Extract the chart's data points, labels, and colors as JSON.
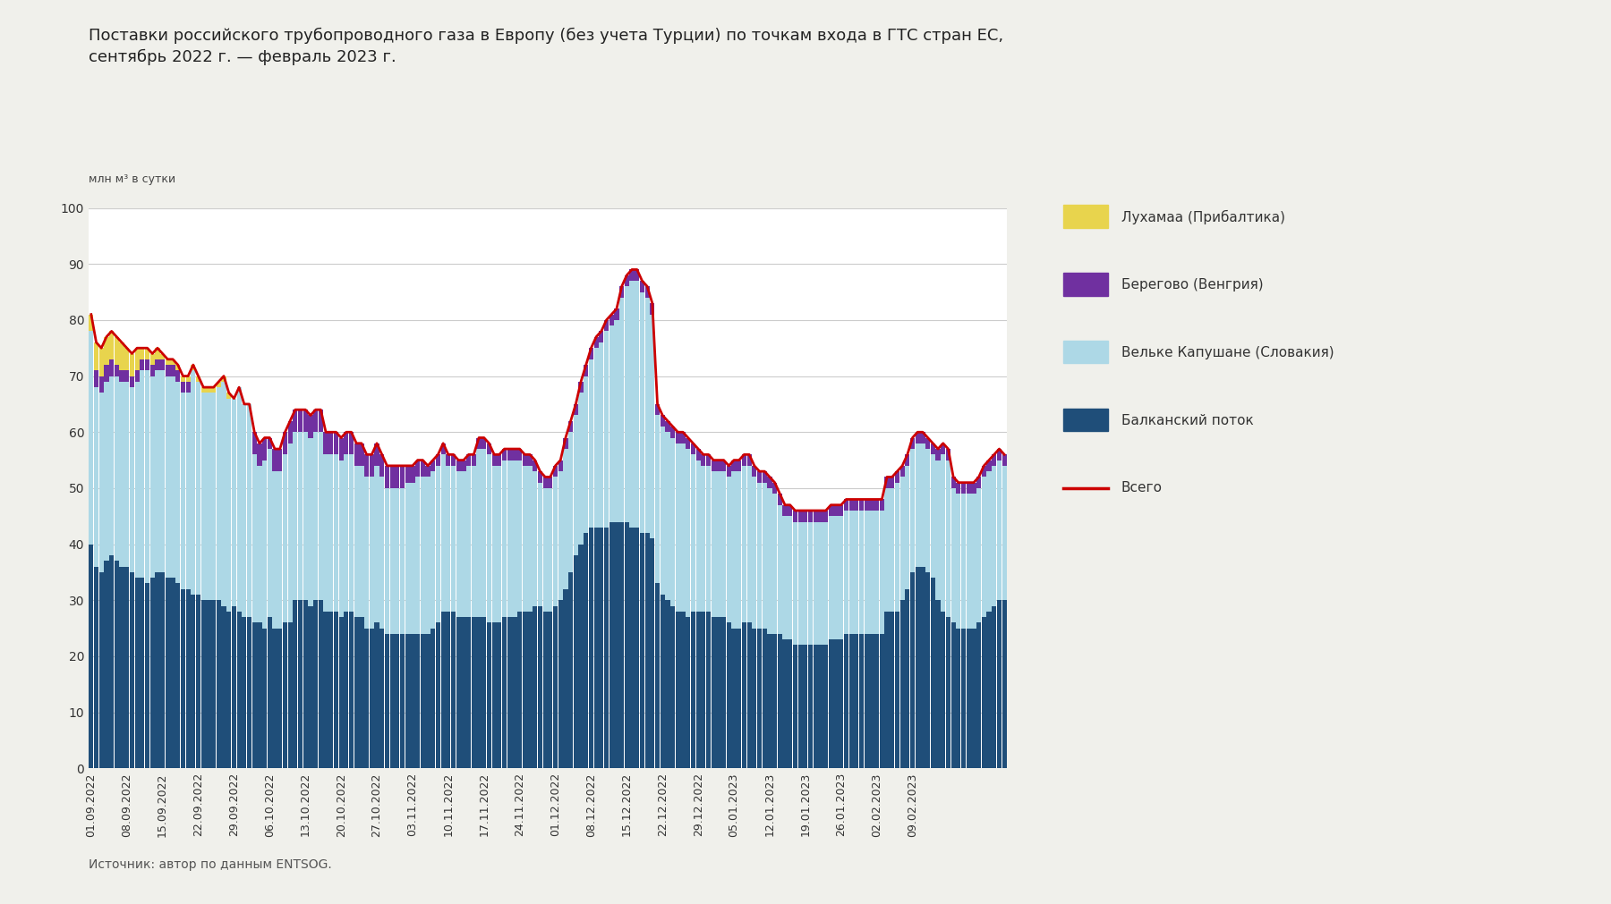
{
  "title": "Поставки российского трубопроводного газа в Европу (без учета Турции) по точкам входа в ГТС стран ЕС,\nсентябрь 2022 г. — февраль 2023 г.",
  "ylabel": "млн м³ в сутки",
  "source": "Источник: автор по данным ENTSOG.",
  "legend_labels": [
    "Лухамаа (Прибалтика)",
    "Берегово (Венгрия)",
    "Вельке Капушане (Словакия)",
    "Балканский поток",
    "Всего"
  ],
  "colors": {
    "luhamaa": "#e8d44d",
    "beregovo": "#7030a0",
    "velke": "#add8e6",
    "balkan": "#1f4e79",
    "total_line": "#cc0000"
  },
  "balkan": [
    40,
    36,
    35,
    37,
    38,
    37,
    36,
    36,
    35,
    34,
    34,
    33,
    34,
    35,
    35,
    34,
    34,
    33,
    32,
    32,
    31,
    31,
    30,
    30,
    30,
    30,
    29,
    28,
    29,
    28,
    27,
    27,
    26,
    26,
    25,
    27,
    25,
    25,
    26,
    26,
    30,
    30,
    30,
    29,
    30,
    30,
    28,
    28,
    28,
    27,
    28,
    28,
    27,
    27,
    25,
    25,
    26,
    25,
    24,
    24,
    24,
    24,
    24,
    24,
    24,
    24,
    24,
    25,
    26,
    28,
    28,
    28,
    27,
    27,
    27,
    27,
    27,
    27,
    26,
    26,
    26,
    27,
    27,
    27,
    28,
    28,
    28,
    29,
    29,
    28,
    28,
    29,
    30,
    32,
    35,
    38,
    40,
    42,
    43,
    43,
    43,
    43,
    44,
    44,
    44,
    44,
    43,
    43,
    42,
    42,
    41,
    33,
    31,
    30,
    29,
    28,
    28,
    27,
    28,
    28,
    28,
    28,
    27,
    27,
    27,
    26,
    25,
    25,
    26,
    26,
    25,
    25,
    25,
    24,
    24,
    24,
    23,
    23,
    22,
    22,
    22,
    22,
    22,
    22,
    22,
    23,
    23,
    23,
    24,
    24,
    24,
    24,
    24,
    24,
    24,
    24,
    28,
    28,
    28,
    30,
    32,
    35,
    36,
    36,
    35,
    34,
    30,
    28,
    27,
    26,
    25,
    25,
    25,
    25,
    26,
    27,
    28,
    29,
    30,
    30
  ],
  "velke": [
    38,
    32,
    32,
    32,
    32,
    33,
    33,
    33,
    33,
    35,
    37,
    38,
    36,
    36,
    36,
    36,
    36,
    36,
    35,
    35,
    40,
    38,
    37,
    37,
    37,
    38,
    40,
    38,
    37,
    40,
    38,
    38,
    30,
    28,
    30,
    30,
    28,
    28,
    30,
    32,
    30,
    30,
    30,
    30,
    30,
    30,
    28,
    28,
    28,
    28,
    28,
    28,
    27,
    27,
    27,
    27,
    28,
    27,
    26,
    26,
    26,
    26,
    27,
    27,
    28,
    28,
    28,
    28,
    28,
    28,
    26,
    26,
    26,
    26,
    27,
    27,
    30,
    30,
    30,
    28,
    28,
    28,
    28,
    28,
    27,
    26,
    26,
    24,
    22,
    22,
    22,
    23,
    23,
    25,
    25,
    25,
    27,
    28,
    30,
    32,
    33,
    35,
    35,
    36,
    40,
    42,
    44,
    44,
    43,
    42,
    40,
    30,
    30,
    30,
    30,
    30,
    30,
    30,
    28,
    27,
    26,
    26,
    26,
    26,
    26,
    26,
    28,
    28,
    28,
    28,
    27,
    26,
    26,
    26,
    25,
    23,
    22,
    22,
    22,
    22,
    22,
    22,
    22,
    22,
    22,
    22,
    22,
    22,
    22,
    22,
    22,
    22,
    22,
    22,
    22,
    22,
    22,
    22,
    23,
    22,
    22,
    22,
    22,
    22,
    22,
    22,
    25,
    28,
    28,
    24,
    24,
    24,
    24,
    24,
    24,
    25,
    25,
    25,
    25,
    24
  ],
  "beregovo": [
    0,
    3,
    3,
    3,
    3,
    2,
    2,
    2,
    2,
    2,
    2,
    2,
    2,
    2,
    2,
    2,
    2,
    2,
    2,
    2,
    0,
    0,
    0,
    0,
    0,
    0,
    0,
    0,
    0,
    0,
    0,
    0,
    4,
    4,
    4,
    2,
    4,
    4,
    4,
    4,
    4,
    4,
    4,
    4,
    4,
    4,
    4,
    4,
    4,
    4,
    4,
    4,
    4,
    4,
    4,
    4,
    4,
    4,
    4,
    4,
    4,
    4,
    3,
    3,
    3,
    3,
    2,
    2,
    2,
    2,
    2,
    2,
    2,
    2,
    2,
    2,
    2,
    2,
    2,
    2,
    2,
    2,
    2,
    2,
    2,
    2,
    2,
    2,
    2,
    2,
    2,
    2,
    2,
    2,
    2,
    2,
    2,
    2,
    2,
    2,
    2,
    2,
    2,
    2,
    2,
    2,
    2,
    2,
    2,
    2,
    2,
    2,
    2,
    2,
    2,
    2,
    2,
    2,
    2,
    2,
    2,
    2,
    2,
    2,
    2,
    2,
    2,
    2,
    2,
    2,
    2,
    2,
    2,
    2,
    2,
    2,
    2,
    2,
    2,
    2,
    2,
    2,
    2,
    2,
    2,
    2,
    2,
    2,
    2,
    2,
    2,
    2,
    2,
    2,
    2,
    2,
    2,
    2,
    2,
    2,
    2,
    2,
    2,
    2,
    2,
    2,
    2,
    2,
    2,
    2,
    2,
    2,
    2,
    2,
    2,
    2,
    2,
    2,
    2,
    2
  ],
  "luhamaa": [
    3,
    5,
    5,
    5,
    5,
    5,
    5,
    4,
    4,
    4,
    2,
    2,
    2,
    2,
    1,
    1,
    1,
    1,
    1,
    1,
    1,
    1,
    1,
    1,
    1,
    1,
    1,
    1,
    0,
    0,
    0,
    0,
    0,
    0,
    0,
    0,
    0,
    0,
    0,
    0,
    0,
    0,
    0,
    0,
    0,
    0,
    0,
    0,
    0,
    0,
    0,
    0,
    0,
    0,
    0,
    0,
    0,
    0,
    0,
    0,
    0,
    0,
    0,
    0,
    0,
    0,
    0,
    0,
    0,
    0,
    0,
    0,
    0,
    0,
    0,
    0,
    0,
    0,
    0,
    0,
    0,
    0,
    0,
    0,
    0,
    0,
    0,
    0,
    0,
    0,
    0,
    0,
    0,
    0,
    0,
    0,
    0,
    0,
    0,
    0,
    0,
    0,
    0,
    0,
    0,
    0,
    0,
    0,
    0,
    0,
    0,
    0,
    0,
    0,
    0,
    0,
    0,
    0,
    0,
    0,
    0,
    0,
    0,
    0,
    0,
    0,
    0,
    0,
    0,
    0,
    0,
    0,
    0,
    0,
    0,
    0,
    0,
    0,
    0,
    0,
    0,
    0,
    0,
    0,
    0,
    0,
    0,
    0,
    0,
    0,
    0,
    0,
    0,
    0,
    0,
    0,
    0,
    0,
    0,
    0,
    0,
    0,
    0,
    0,
    0,
    0,
    0,
    0,
    0,
    0,
    0,
    0,
    0,
    0,
    0,
    0,
    0,
    0,
    0,
    0
  ],
  "x_tick_labels": [
    "01.09.2022",
    "08.09.2022",
    "15.09.2022",
    "22.09.2022",
    "29.09.2022",
    "06.10.2022",
    "13.10.2022",
    "20.10.2022",
    "27.10.2022",
    "03.11.2022",
    "10.11.2022",
    "17.11.2022",
    "24.11.2022",
    "01.12.2022",
    "08.12.2022",
    "15.12.2022",
    "22.12.2022",
    "29.12.2022",
    "05.01.2023",
    "12.01.2023",
    "19.01.2023",
    "26.01.2023",
    "02.02.2023",
    "09.02.2023"
  ],
  "x_tick_positions": [
    0,
    7,
    14,
    21,
    28,
    35,
    42,
    49,
    56,
    63,
    70,
    77,
    84,
    91,
    98,
    105,
    112,
    119,
    126,
    133,
    140,
    147,
    154,
    161
  ],
  "ylim": [
    0,
    100
  ],
  "yticks": [
    0,
    10,
    20,
    30,
    40,
    50,
    60,
    70,
    80,
    90,
    100
  ],
  "bg_color": "#f0f0eb",
  "plot_bg_color": "#ffffff"
}
